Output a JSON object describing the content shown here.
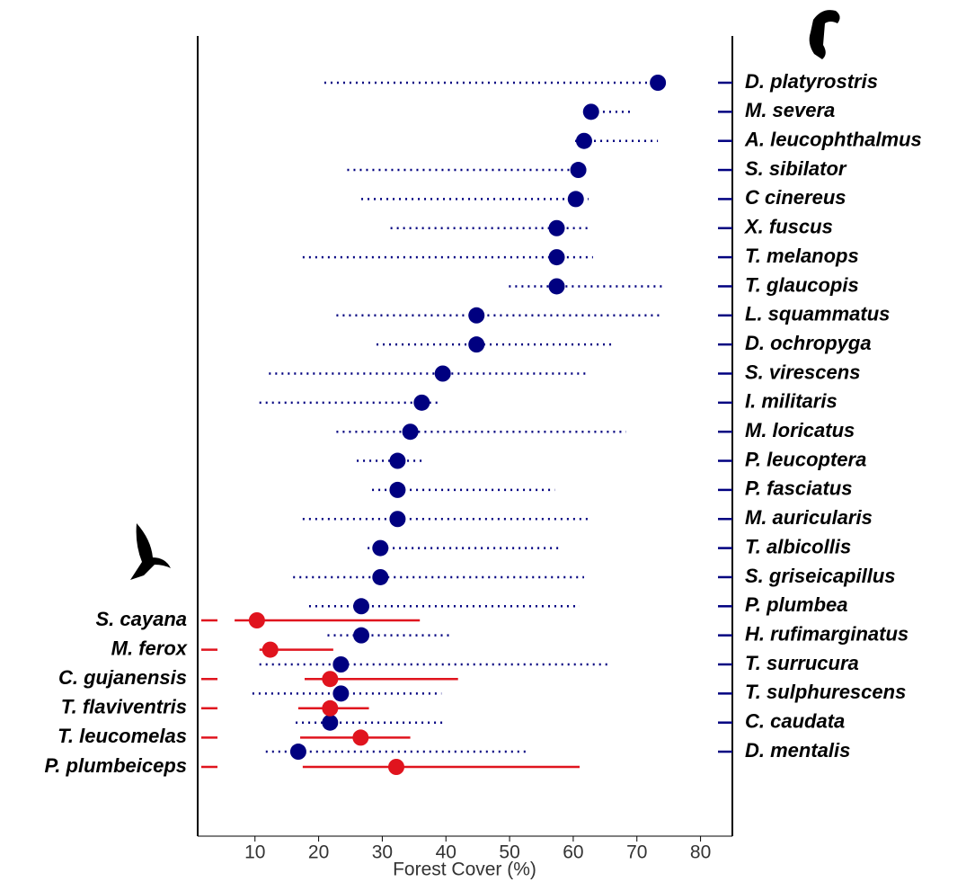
{
  "chart_data": {
    "type": "dot-interval",
    "xlabel": "Forest Cover (%)",
    "xlim": [
      1,
      85
    ],
    "xticks": [
      10,
      20,
      30,
      40,
      50,
      60,
      70,
      80
    ],
    "groups": [
      {
        "color": "#000080",
        "side": "right",
        "line_style": "dotted",
        "categories": [
          "D. platyrostris",
          "M. severa",
          "A. leucophthalmus",
          "S. sibilator",
          "C cinereus",
          "X. fuscus",
          "T. melanops",
          "T. glaucopis",
          "L. squammatus",
          "D. ochropyga",
          "S. virescens",
          "I. militaris",
          "M. loricatus",
          "P. leucoptera",
          "P. fasciatus",
          "M. auricularis",
          "T. albicollis",
          "S. griseicapillus",
          "P. plumbea",
          "H. rufimarginatus",
          "T. surrucura",
          "T. sulphurescens",
          "C. caudata",
          "D. mentalis"
        ],
        "values": [
          73.3,
          62.8,
          61.7,
          60.8,
          60.4,
          57.4,
          57.4,
          57.4,
          44.8,
          44.8,
          39.5,
          36.2,
          34.4,
          32.4,
          32.4,
          32.4,
          29.7,
          29.7,
          26.7,
          26.7,
          23.5,
          23.5,
          21.8,
          16.8
        ],
        "lower": [
          20.9,
          61.7,
          60.3,
          24.5,
          26.7,
          31.3,
          17.5,
          49.9,
          22.8,
          29.1,
          12.2,
          10.7,
          22.8,
          26,
          28.4,
          17.5,
          27.7,
          16,
          18.5,
          21.4,
          10.7,
          9.6,
          16.4,
          11.7
        ],
        "upper": [
          73.3,
          69.4,
          73.3,
          62,
          62.4,
          62.7,
          63.1,
          74.4,
          74,
          66.2,
          62,
          39,
          68.3,
          36.2,
          57.1,
          62.4,
          57.7,
          61.7,
          61,
          40.5,
          65.9,
          39.3,
          39.6,
          53.2
        ]
      },
      {
        "color": "#e0141e",
        "side": "left",
        "line_style": "solid",
        "categories": [
          "S. cayana",
          "M. ferox",
          "C. gujanensis",
          "T. flaviventris",
          "T. leucomelas",
          "P. plumbeiceps"
        ],
        "values": [
          10.3,
          12.4,
          21.8,
          21.8,
          26.6,
          32.2
        ],
        "lower": [
          6.8,
          10.7,
          17.8,
          16.8,
          17.1,
          17.5
        ],
        "upper": [
          35.9,
          22.3,
          41.9,
          27.9,
          34.4,
          61
        ]
      }
    ]
  }
}
